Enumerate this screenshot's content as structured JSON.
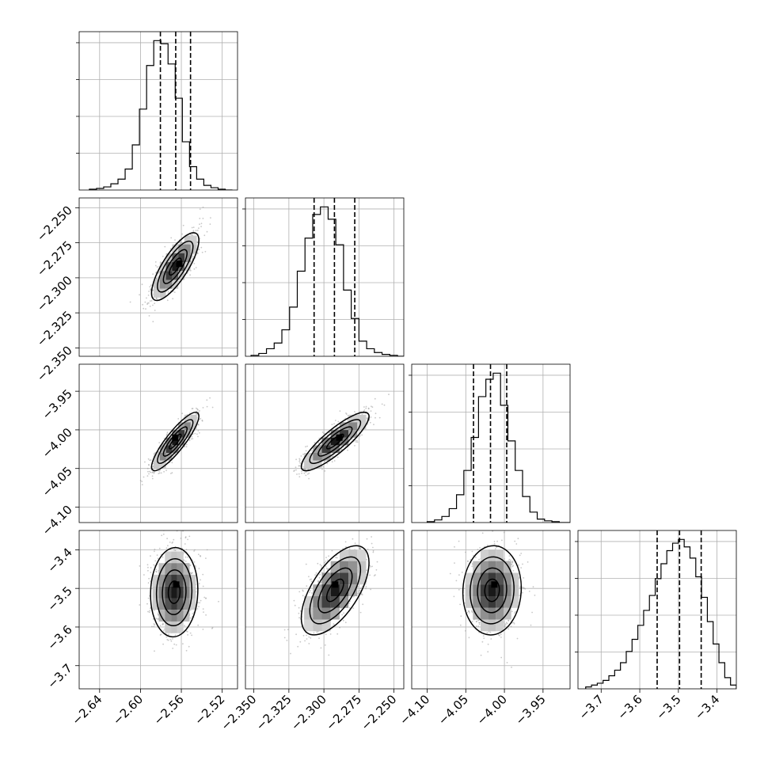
{
  "chart_data": {
    "type": "corner",
    "params": 4,
    "grid": true,
    "histogram_quantile_lines": "dashed",
    "axes_ranges": [
      [
        -2.66,
        -2.505
      ],
      [
        -2.356,
        -2.243
      ],
      [
        -4.12,
        -3.915
      ],
      [
        -3.76,
        -3.35
      ]
    ],
    "ticks": [
      {
        "values": [
          -2.64,
          -2.6,
          -2.56,
          -2.52
        ],
        "labels": [
          "−2.64",
          "−2.60",
          "−2.56",
          "−2.52"
        ]
      },
      {
        "values": [
          -2.35,
          -2.325,
          -2.3,
          -2.275,
          -2.25
        ],
        "labels": [
          "−2.350",
          "−2.325",
          "−2.300",
          "−2.275",
          "−2.250"
        ]
      },
      {
        "values": [
          -4.1,
          -4.05,
          -4.0,
          -3.95
        ],
        "labels": [
          "−4.10",
          "−4.05",
          "−4.00",
          "−3.95"
        ]
      },
      {
        "values": [
          -3.7,
          -3.6,
          -3.5,
          -3.4
        ],
        "labels": [
          "−3.7",
          "−3.6",
          "−3.5",
          "−3.4"
        ]
      }
    ],
    "histograms": [
      {
        "param": 0,
        "edges": [
          -2.65,
          -2.643,
          -2.636,
          -2.629,
          -2.622,
          -2.615,
          -2.608,
          -2.601,
          -2.594,
          -2.587,
          -2.58,
          -2.573,
          -2.566,
          -2.559,
          -2.552,
          -2.545,
          -2.538,
          -2.531,
          -2.524,
          -2.517,
          -2.51
        ],
        "counts": [
          1,
          2,
          4,
          8,
          14,
          27,
          58,
          104,
          160,
          192,
          188,
          162,
          118,
          62,
          30,
          14,
          6,
          3,
          1,
          0
        ],
        "quantiles": [
          -2.5805,
          -2.5655,
          -2.551
        ]
      },
      {
        "param": 1,
        "edges": [
          -2.352,
          -2.3465,
          -2.341,
          -2.3355,
          -2.33,
          -2.3245,
          -2.319,
          -2.3135,
          -2.308,
          -2.3025,
          -2.297,
          -2.2915,
          -2.286,
          -2.2805,
          -2.275,
          -2.2695,
          -2.264,
          -2.2585,
          -2.253,
          -2.2475,
          -2.242
        ],
        "counts": [
          1,
          3,
          8,
          14,
          28,
          52,
          90,
          125,
          150,
          158,
          145,
          118,
          70,
          40,
          16,
          8,
          4,
          2,
          1,
          0
        ],
        "quantiles": [
          -2.307,
          -2.2925,
          -2.278
        ]
      },
      {
        "param": 2,
        "edges": [
          -4.1,
          -4.0905,
          -4.081,
          -4.0715,
          -4.062,
          -4.0525,
          -4.043,
          -4.0335,
          -4.024,
          -4.0145,
          -4.005,
          -3.9955,
          -3.986,
          -3.9765,
          -3.967,
          -3.9575,
          -3.948,
          -3.9385,
          -3.929,
          -3.9195,
          -3.91
        ],
        "counts": [
          1,
          3,
          7,
          16,
          32,
          60,
          98,
          145,
          165,
          172,
          135,
          94,
          60,
          30,
          12,
          4,
          2,
          1,
          0,
          0
        ],
        "quantiles": [
          -4.04,
          -4.018,
          -3.997
        ]
      },
      {
        "param": 3,
        "edges": [
          -3.74,
          -3.725,
          -3.71,
          -3.695,
          -3.68,
          -3.665,
          -3.65,
          -3.635,
          -3.62,
          -3.605,
          -3.59,
          -3.575,
          -3.56,
          -3.545,
          -3.53,
          -3.515,
          -3.5,
          -3.485,
          -3.47,
          -3.455,
          -3.44,
          -3.425,
          -3.41,
          -3.395,
          -3.38,
          -3.365,
          -3.35
        ],
        "counts": [
          2,
          4,
          6,
          9,
          14,
          20,
          28,
          40,
          53,
          68,
          84,
          100,
          118,
          134,
          148,
          156,
          160,
          152,
          140,
          120,
          98,
          72,
          48,
          28,
          12,
          4
        ],
        "quantiles": [
          -3.555,
          -3.497,
          -3.441
        ]
      }
    ],
    "pairs": [
      {
        "x_param": 0,
        "y_param": 1,
        "mean": [
          -2.566,
          -2.292
        ],
        "sd": [
          0.011,
          0.0115
        ],
        "corr": 0.78,
        "peak": [
          -2.562,
          -2.29
        ]
      },
      {
        "x_param": 0,
        "y_param": 2,
        "mean": [
          -2.566,
          -4.015
        ],
        "sd": [
          0.011,
          0.018
        ],
        "corr": 0.87,
        "peak": [
          -2.566,
          -4.01
        ]
      },
      {
        "x_param": 1,
        "y_param": 2,
        "mean": [
          -2.292,
          -4.015
        ],
        "sd": [
          0.0115,
          0.018
        ],
        "corr": 0.86,
        "peak": [
          -2.289,
          -4.01
        ]
      },
      {
        "x_param": 0,
        "y_param": 3,
        "mean": [
          -2.567,
          -3.51
        ],
        "sd": [
          0.011,
          0.055
        ],
        "corr": 0.05,
        "peak": [
          -2.565,
          -3.49
        ]
      },
      {
        "x_param": 1,
        "y_param": 3,
        "mean": [
          -2.292,
          -3.505
        ],
        "sd": [
          0.0115,
          0.055
        ],
        "corr": 0.62,
        "peak": [
          -2.292,
          -3.49
        ]
      },
      {
        "x_param": 2,
        "y_param": 3,
        "mean": [
          -4.016,
          -3.505
        ],
        "sd": [
          0.018,
          0.055
        ],
        "corr": 0.05,
        "peak": [
          -4.013,
          -3.49
        ]
      }
    ]
  }
}
